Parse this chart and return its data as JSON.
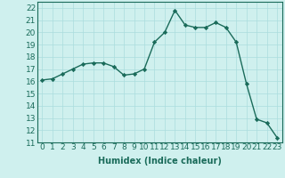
{
  "x": [
    0,
    1,
    2,
    3,
    4,
    5,
    6,
    7,
    8,
    9,
    10,
    11,
    12,
    13,
    14,
    15,
    16,
    17,
    18,
    19,
    20,
    21,
    22,
    23
  ],
  "y": [
    16.1,
    16.2,
    16.6,
    17.0,
    17.4,
    17.5,
    17.5,
    17.2,
    16.5,
    16.6,
    17.0,
    19.2,
    20.0,
    21.8,
    20.6,
    20.4,
    20.4,
    20.8,
    20.4,
    19.2,
    15.8,
    12.9,
    12.6,
    11.4
  ],
  "xlabel": "Humidex (Indice chaleur)",
  "xlim": [
    -0.5,
    23.5
  ],
  "ylim": [
    11,
    22.5
  ],
  "yticks": [
    11,
    12,
    13,
    14,
    15,
    16,
    17,
    18,
    19,
    20,
    21,
    22
  ],
  "xticks": [
    0,
    1,
    2,
    3,
    4,
    5,
    6,
    7,
    8,
    9,
    10,
    11,
    12,
    13,
    14,
    15,
    16,
    17,
    18,
    19,
    20,
    21,
    22,
    23
  ],
  "line_color": "#1a6b5a",
  "marker": "D",
  "marker_size": 2.2,
  "bg_color": "#cff0ee",
  "grid_color": "#aadddd",
  "label_fontsize": 7,
  "tick_fontsize": 6.5
}
